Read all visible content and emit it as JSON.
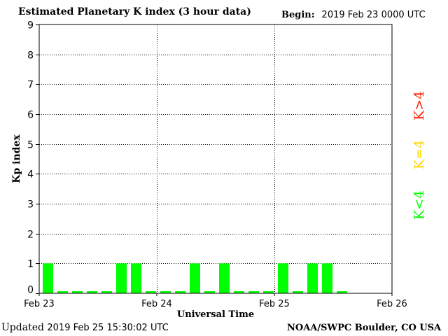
{
  "header": {
    "title": "Estimated Planetary K index (3 hour data)",
    "begin_label": "Begin:",
    "begin_value": "2019 Feb 23 0000 UTC"
  },
  "footer": {
    "updated_label": "Updated",
    "updated_value": "2019 Feb 25 15:30:02 UTC",
    "credit": "NOAA/SWPC Boulder, CO USA"
  },
  "legend": {
    "k_high": {
      "text": "K>4",
      "color": "#ff2000"
    },
    "k_equal": {
      "text": "K=4",
      "color": "#ffd700"
    },
    "k_low": {
      "text": "K<4",
      "color": "#00ff00"
    }
  },
  "chart_data": {
    "type": "bar",
    "title": "Estimated Planetary K index (3 hour data)",
    "xlabel": "Universal Time",
    "ylabel": "Kp index",
    "ylim": [
      0,
      9
    ],
    "yticks": [
      0,
      1,
      2,
      3,
      4,
      5,
      6,
      7,
      8,
      9
    ],
    "x_tick_labels": [
      "Feb 23",
      "Feb 24",
      "Feb 25",
      "Feb 26"
    ],
    "periods_total": 24,
    "bar_color": "#00ff00",
    "grid": "dotted",
    "values": [
      1,
      0,
      0,
      0,
      0,
      1,
      1,
      0,
      0,
      0,
      1,
      0,
      1,
      0,
      0,
      0,
      1,
      0,
      1,
      1,
      0
    ]
  }
}
